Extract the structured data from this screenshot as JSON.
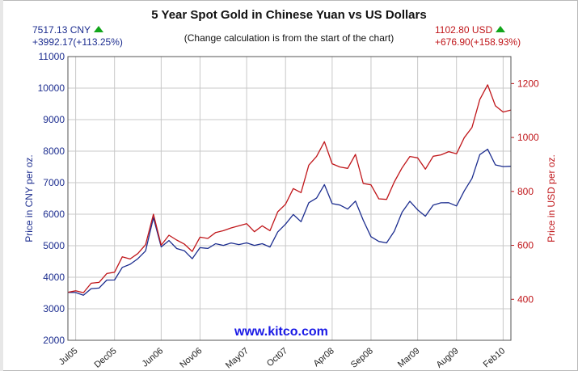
{
  "chart_data": {
    "type": "line",
    "title": "5 Year Spot Gold in Chinese Yuan vs US Dollars",
    "subtitle": "(Change calculation is from the start of the chart)",
    "website": "www.kitco.com",
    "left_stats": {
      "price": "7517.13 CNY",
      "change": "+3992.17(+113.25%)",
      "trend_icon": "up-triangle-icon",
      "color": "#1c2d8f"
    },
    "right_stats": {
      "price": "1102.80 USD",
      "change": "+676.90(+158.93%)",
      "trend_icon": "up-triangle-icon",
      "color": "#c0161a"
    },
    "x_tick_labels": [
      "Jul05",
      "Dec05",
      "Jun06",
      "Nov06",
      "May07",
      "Oct07",
      "Apr08",
      "Sep08",
      "Mar09",
      "Aug09",
      "Feb10"
    ],
    "y_left": {
      "label": "Price in CNY per oz.",
      "ticks": [
        2000,
        3000,
        4000,
        5000,
        6000,
        7000,
        8000,
        9000,
        10000,
        11000
      ],
      "range": [
        2000,
        11000
      ]
    },
    "y_right": {
      "label": "Price in USD per oz.",
      "ticks": [
        400,
        600,
        800,
        1000,
        1200
      ],
      "range": [
        248,
        1300
      ]
    },
    "grid": true,
    "series": [
      {
        "axis": "left",
        "color": "#1c2d8f",
        "points": [
          [
            "Jun05",
            3520
          ],
          [
            "Jul05",
            3450
          ],
          [
            "Aug05",
            3520
          ],
          [
            "Sep05",
            3600
          ],
          [
            "Oct05",
            3720
          ],
          [
            "Nov05",
            3820
          ],
          [
            "Dec05",
            3950
          ],
          [
            "Jan06",
            4250
          ],
          [
            "Feb06",
            4500
          ],
          [
            "Mar06",
            4550
          ],
          [
            "Apr06",
            4900
          ],
          [
            "May06",
            5800
          ],
          [
            "Jun06",
            5000
          ],
          [
            "Jul06",
            5100
          ],
          [
            "Aug06",
            5000
          ],
          [
            "Sep06",
            4800
          ],
          [
            "Oct06",
            4650
          ],
          [
            "Nov06",
            4850
          ],
          [
            "Dec06",
            4950
          ],
          [
            "Jan07",
            5000
          ],
          [
            "Feb07",
            5100
          ],
          [
            "Mar07",
            5050
          ],
          [
            "Apr07",
            5100
          ],
          [
            "May07",
            5000
          ],
          [
            "Jun07",
            5050
          ],
          [
            "Jul07",
            5000
          ],
          [
            "Aug07",
            5050
          ],
          [
            "Sep07",
            5400
          ],
          [
            "Oct07",
            5750
          ],
          [
            "Nov07",
            5900
          ],
          [
            "Dec07",
            5800
          ],
          [
            "Jan08",
            6300
          ],
          [
            "Feb08",
            6600
          ],
          [
            "Mar08",
            6900
          ],
          [
            "Apr08",
            6400
          ],
          [
            "May08",
            6200
          ],
          [
            "Jun08",
            6200
          ],
          [
            "Jul08",
            6350
          ],
          [
            "Aug08",
            5900
          ],
          [
            "Sep08",
            5250
          ],
          [
            "Oct08",
            5200
          ],
          [
            "Nov08",
            5000
          ],
          [
            "Dec08",
            5500
          ],
          [
            "Jan09",
            6000
          ],
          [
            "Feb09",
            6500
          ],
          [
            "Mar09",
            6100
          ],
          [
            "Apr09",
            6000
          ],
          [
            "May09",
            6200
          ],
          [
            "Jun09",
            6400
          ],
          [
            "Jul09",
            6300
          ],
          [
            "Aug09",
            6350
          ],
          [
            "Sep09",
            6700
          ],
          [
            "Oct09",
            7200
          ],
          [
            "Nov09",
            7800
          ],
          [
            "Dec09",
            8100
          ],
          [
            "Jan10",
            7500
          ],
          [
            "Feb10",
            7600
          ],
          [
            "Mar10",
            7520
          ]
        ]
      },
      {
        "axis": "right",
        "color": "#c0161a",
        "points": [
          [
            "Jun05",
            426
          ],
          [
            "Jul05",
            424
          ],
          [
            "Aug05",
            435
          ],
          [
            "Sep05",
            455
          ],
          [
            "Oct05",
            470
          ],
          [
            "Nov05",
            485
          ],
          [
            "Dec05",
            505
          ],
          [
            "Jan06",
            550
          ],
          [
            "Feb06",
            560
          ],
          [
            "Mar06",
            565
          ],
          [
            "Apr06",
            610
          ],
          [
            "May06",
            705
          ],
          [
            "Jun06",
            605
          ],
          [
            "Jul06",
            630
          ],
          [
            "Aug06",
            630
          ],
          [
            "Sep06",
            600
          ],
          [
            "Oct06",
            585
          ],
          [
            "Nov06",
            620
          ],
          [
            "Dec06",
            630
          ],
          [
            "Jan07",
            640
          ],
          [
            "Feb07",
            665
          ],
          [
            "Mar07",
            660
          ],
          [
            "Apr07",
            680
          ],
          [
            "May07",
            670
          ],
          [
            "Jun07",
            655
          ],
          [
            "Jul07",
            665
          ],
          [
            "Aug07",
            665
          ],
          [
            "Sep07",
            720
          ],
          [
            "Oct07",
            760
          ],
          [
            "Nov07",
            800
          ],
          [
            "Dec07",
            800
          ],
          [
            "Jan08",
            890
          ],
          [
            "Feb08",
            940
          ],
          [
            "Mar08",
            980
          ],
          [
            "Apr08",
            910
          ],
          [
            "May08",
            880
          ],
          [
            "Jun08",
            890
          ],
          [
            "Jul08",
            930
          ],
          [
            "Aug08",
            840
          ],
          [
            "Sep08",
            820
          ],
          [
            "Oct08",
            780
          ],
          [
            "Nov08",
            760
          ],
          [
            "Dec08",
            840
          ],
          [
            "Jan09",
            880
          ],
          [
            "Feb09",
            940
          ],
          [
            "Mar09",
            920
          ],
          [
            "Apr09",
            890
          ],
          [
            "May09",
            920
          ],
          [
            "Jun09",
            940
          ],
          [
            "Jul09",
            940
          ],
          [
            "Aug09",
            950
          ],
          [
            "Sep09",
            995
          ],
          [
            "Oct09",
            1045
          ],
          [
            "Nov09",
            1130
          ],
          [
            "Dec09",
            1200
          ],
          [
            "Jan10",
            1110
          ],
          [
            "Feb10",
            1105
          ],
          [
            "Mar10",
            1102
          ]
        ]
      }
    ]
  }
}
